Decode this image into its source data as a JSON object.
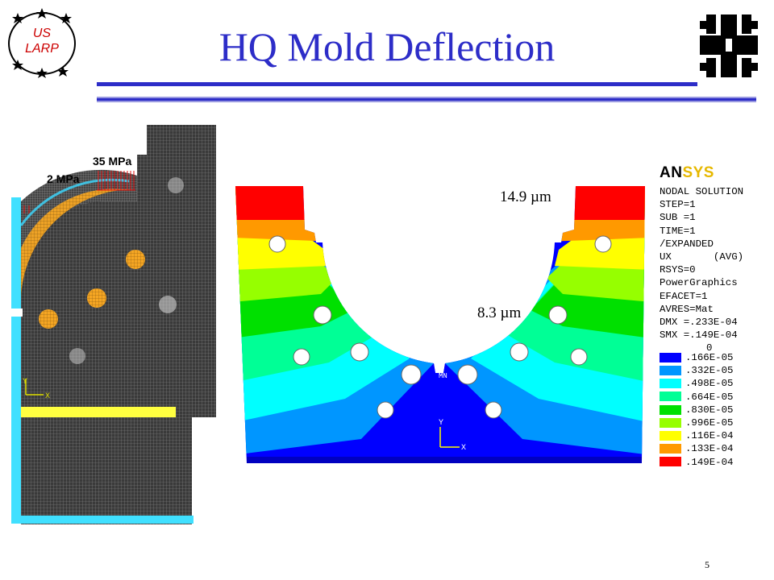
{
  "header": {
    "title": "HQ Mold Deflection",
    "logo_left_lines": [
      "US",
      "LARP"
    ],
    "page_number": "5"
  },
  "left_model": {
    "pressure_high_label": "35 MPa",
    "pressure_low_label": "2 MPa",
    "triad_y": "Y",
    "triad_x": "X"
  },
  "right_model": {
    "max_value_label": "14.9 µm",
    "mid_value_label": "8.3 µm",
    "mx_marker": "MX",
    "mn_marker": "MN",
    "triad_y": "Y",
    "triad_x": "X"
  },
  "ansys_panel": {
    "logo_an": "AN",
    "logo_sys": "SYS",
    "lines": [
      "NODAL SOLUTION",
      "STEP=1",
      "SUB =1",
      "TIME=1",
      "/EXPANDED",
      "UX       (AVG)",
      "RSYS=0",
      "PowerGraphics",
      "EFACET=1",
      "AVRES=Mat",
      "DMX =.233E-04",
      "SMX =.149E-04"
    ],
    "legend_zero": "0",
    "legend_values": [
      ".166E-05",
      ".332E-05",
      ".498E-05",
      ".664E-05",
      ".830E-05",
      ".996E-05",
      ".116E-04",
      ".133E-04",
      ".149E-04"
    ],
    "legend_colors": [
      "#0000ff",
      "#0096ff",
      "#00ffff",
      "#00ff96",
      "#00e000",
      "#96ff00",
      "#ffff00",
      "#ff9900",
      "#ff0000"
    ]
  },
  "colors": {
    "title_blue": "#2d2dc8",
    "mesh_dark": "#3a3a3a",
    "highlight_orange": "#f5a623",
    "bc_cyan": "#40e0ff"
  }
}
